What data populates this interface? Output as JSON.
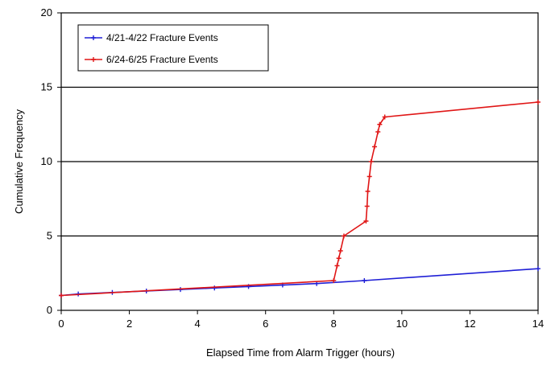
{
  "chart_data": {
    "type": "line",
    "title": "",
    "xlabel": "Elapsed Time from Alarm Trigger (hours)",
    "ylabel": "Cumulative Frequency",
    "xlim": [
      0,
      14
    ],
    "ylim": [
      0,
      20
    ],
    "xticks": [
      0,
      2,
      4,
      6,
      8,
      10,
      12,
      14
    ],
    "yticks": [
      0,
      5,
      10,
      15,
      20
    ],
    "grid": "horizontal",
    "legend_position": "top-left",
    "series": [
      {
        "name": "4/21-4/22 Fracture Events",
        "color": "#1f1fd6",
        "x": [
          0,
          0.5,
          1.5,
          2.5,
          3.5,
          4.5,
          5.5,
          6.5,
          7.5,
          8.9,
          14
        ],
        "y": [
          1.0,
          1.1,
          1.2,
          1.3,
          1.4,
          1.5,
          1.6,
          1.7,
          1.8,
          2.0,
          2.8
        ]
      },
      {
        "name": "6/24-6/25 Fracture Events",
        "color": "#e01515",
        "x": [
          0,
          8.0,
          8.1,
          8.15,
          8.2,
          8.3,
          8.95,
          8.98,
          9.0,
          9.05,
          9.1,
          9.2,
          9.3,
          9.35,
          9.5,
          14
        ],
        "y": [
          1.0,
          2.0,
          3.0,
          3.5,
          4.0,
          5.0,
          6.0,
          7.0,
          8.0,
          9.0,
          10.0,
          11.0,
          12.0,
          12.5,
          13.0,
          14.0
        ]
      }
    ]
  }
}
